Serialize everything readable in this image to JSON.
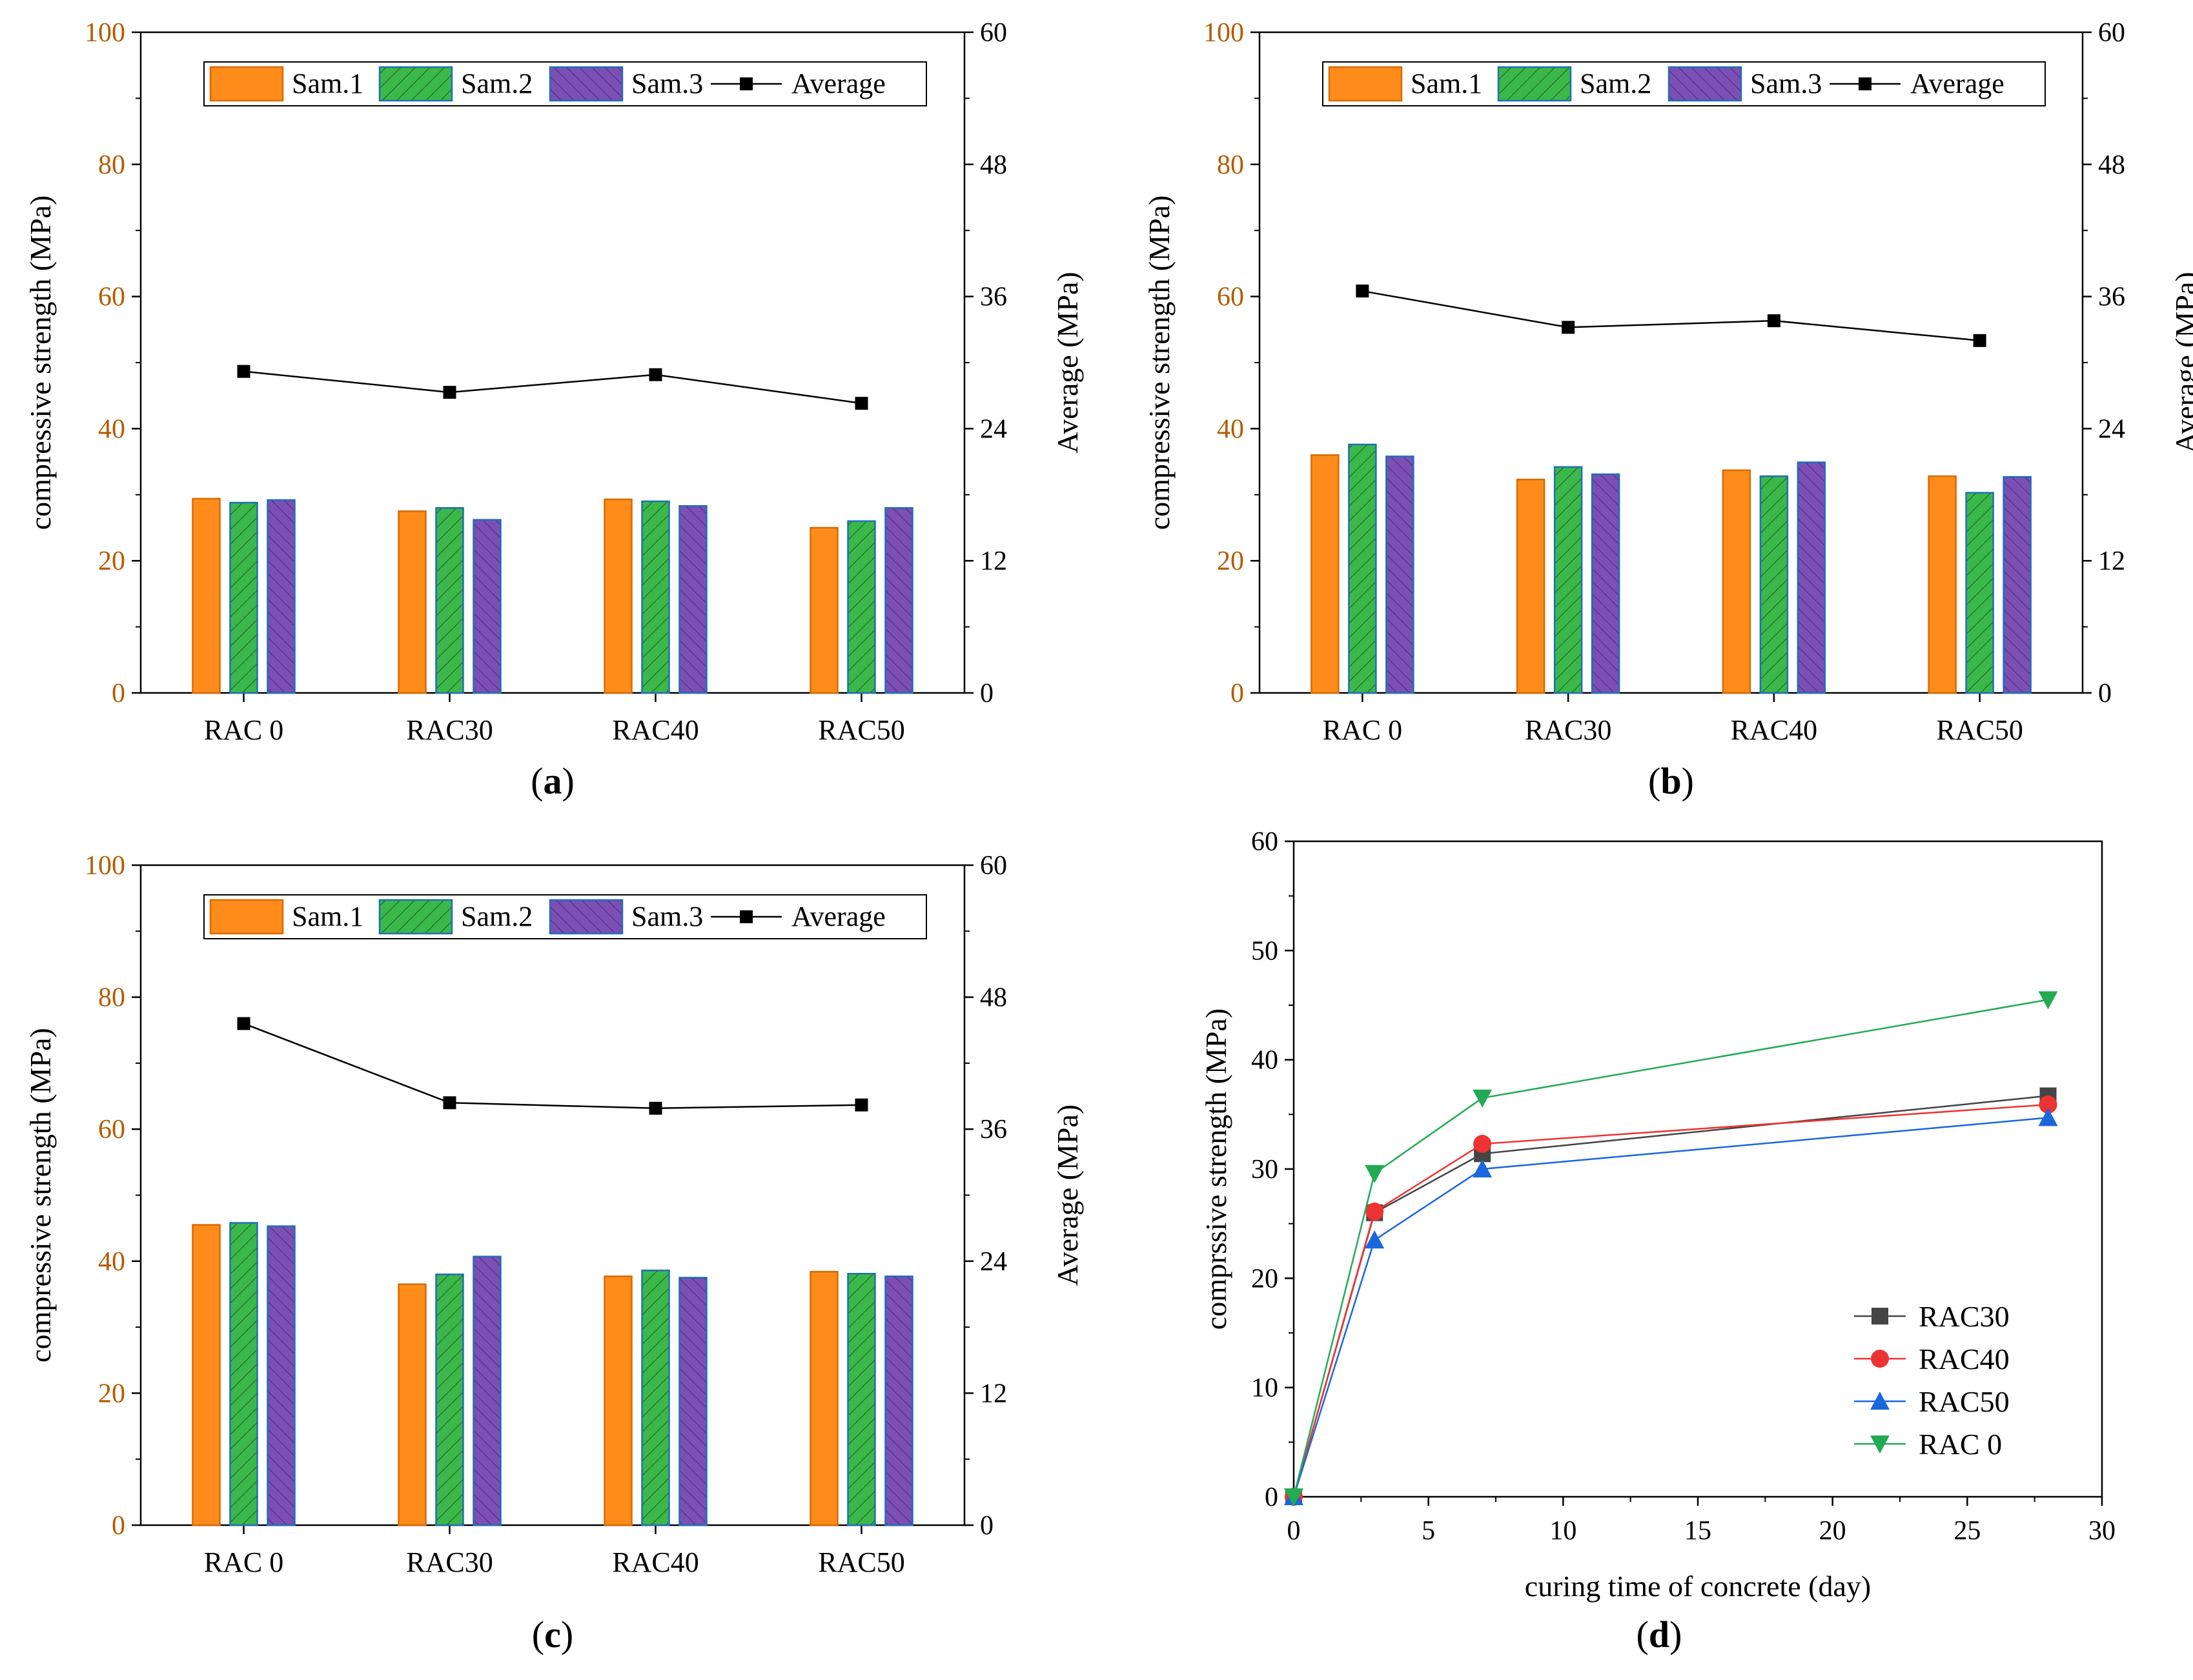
{
  "colors": {
    "sam1": "#ff8c1a",
    "sam2": "#3cb84a",
    "sam3": "#7b4fb3",
    "average": "#000000",
    "left_axis": "#b35c00",
    "rac30": "#444444",
    "rac40": "#ee3333",
    "rac50": "#1a66dd",
    "rac0": "#22aa55"
  },
  "chart_data": [
    {
      "panel": "(a)",
      "panel_letter": "a",
      "type": "bar",
      "categories": [
        "RAC 0",
        "RAC30",
        "RAC40",
        "RAC50"
      ],
      "series": [
        {
          "name": "Sam.1",
          "values": [
            29.4,
            27.5,
            29.3,
            25.0
          ]
        },
        {
          "name": "Sam.2",
          "values": [
            28.8,
            28.0,
            29.0,
            26.0
          ]
        },
        {
          "name": "Sam.3",
          "values": [
            29.2,
            26.2,
            28.3,
            28.0
          ]
        }
      ],
      "average": {
        "name": "Average",
        "values": [
          29.2,
          27.3,
          28.9,
          26.3
        ],
        "axis": "right"
      },
      "ylabel": "compressive strength (MPa)",
      "ylabel_right": "Average (MPa)",
      "ylim": [
        0,
        100
      ],
      "ylim_right": [
        0,
        60
      ],
      "yticks": [
        0,
        20,
        40,
        60,
        80,
        100
      ],
      "yticks_right": [
        0,
        12,
        24,
        36,
        48,
        60
      ],
      "legend_position": "top"
    },
    {
      "panel": "(b)",
      "panel_letter": "b",
      "type": "bar",
      "categories": [
        "RAC 0",
        "RAC30",
        "RAC40",
        "RAC50"
      ],
      "series": [
        {
          "name": "Sam.1",
          "values": [
            36.0,
            32.3,
            33.7,
            32.8
          ]
        },
        {
          "name": "Sam.2",
          "values": [
            37.6,
            34.2,
            32.8,
            30.3
          ]
        },
        {
          "name": "Sam.3",
          "values": [
            35.8,
            33.1,
            34.9,
            32.7
          ]
        }
      ],
      "average": {
        "name": "Average",
        "values": [
          36.5,
          33.2,
          33.8,
          32.0
        ],
        "axis": "right"
      },
      "ylabel": "compressive strength (MPa)",
      "ylabel_right": "Average (MPa)",
      "ylim": [
        0,
        100
      ],
      "ylim_right": [
        0,
        60
      ],
      "yticks": [
        0,
        20,
        40,
        60,
        80,
        100
      ],
      "yticks_right": [
        0,
        12,
        24,
        36,
        48,
        60
      ],
      "legend_position": "top"
    },
    {
      "panel": "(c)",
      "panel_letter": "c",
      "type": "bar",
      "categories": [
        "RAC 0",
        "RAC30",
        "RAC40",
        "RAC50"
      ],
      "series": [
        {
          "name": "Sam.1",
          "values": [
            45.5,
            36.5,
            37.7,
            38.4
          ]
        },
        {
          "name": "Sam.2",
          "values": [
            45.8,
            38.0,
            38.6,
            38.1
          ]
        },
        {
          "name": "Sam.3",
          "values": [
            45.3,
            40.7,
            37.5,
            37.7
          ]
        }
      ],
      "average": {
        "name": "Average",
        "values": [
          45.6,
          38.4,
          37.9,
          38.2
        ],
        "axis": "right"
      },
      "ylabel": "compressive strength (MPa)",
      "ylabel_right": "Average (MPa)",
      "ylim": [
        0,
        100
      ],
      "ylim_right": [
        0,
        60
      ],
      "yticks": [
        0,
        20,
        40,
        60,
        80,
        100
      ],
      "yticks_right": [
        0,
        12,
        24,
        36,
        48,
        60
      ],
      "legend_position": "top"
    },
    {
      "panel": "(d)",
      "panel_letter": "d",
      "type": "line",
      "x": [
        0,
        3,
        7,
        28
      ],
      "series": [
        {
          "name": "RAC30",
          "marker": "square",
          "values": [
            0,
            26.0,
            31.4,
            36.7
          ]
        },
        {
          "name": "RAC40",
          "marker": "circle",
          "values": [
            0,
            26.1,
            32.3,
            35.9
          ]
        },
        {
          "name": "RAC50",
          "marker": "triangle-up",
          "values": [
            0,
            23.5,
            30.0,
            34.7
          ]
        },
        {
          "name": "RAC 0",
          "marker": "triangle-down",
          "values": [
            0,
            29.6,
            36.5,
            45.5
          ]
        }
      ],
      "xlabel": "curing time of concrete (day)",
      "ylabel": "comprssive strength (MPa)",
      "xlim": [
        0,
        30
      ],
      "ylim": [
        0,
        60
      ],
      "xticks": [
        0,
        5,
        10,
        15,
        20,
        25,
        30
      ],
      "yticks": [
        0,
        10,
        20,
        30,
        40,
        50,
        60
      ],
      "legend_position": "bottom-right"
    }
  ]
}
